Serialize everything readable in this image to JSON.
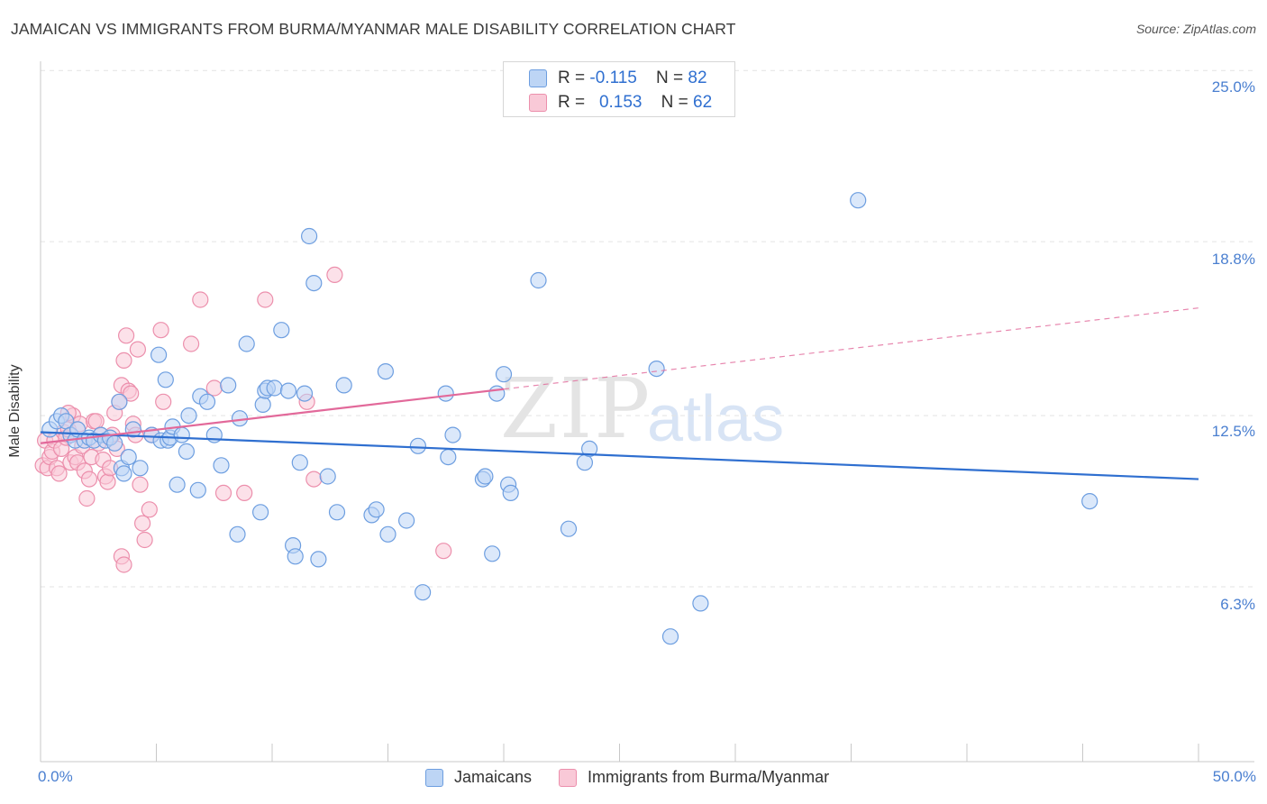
{
  "header": {
    "title": "JAMAICAN VS IMMIGRANTS FROM BURMA/MYANMAR MALE DISABILITY CORRELATION CHART",
    "source": "Source: ZipAtlas.com"
  },
  "watermark": {
    "zip": "ZIP",
    "atlas": "atlas"
  },
  "legend_top": {
    "rows": [
      {
        "r_label": "R =",
        "r_value": "-0.115",
        "n_label": "N =",
        "n_value": "82"
      },
      {
        "r_label": "R =",
        "r_value": "0.153",
        "n_label": "N =",
        "n_value": "62"
      }
    ]
  },
  "legend_bottom": {
    "items": [
      {
        "label": "Jamaicans"
      },
      {
        "label": "Immigrants from Burma/Myanmar"
      }
    ]
  },
  "colors": {
    "jamaicans_fill": "#bdd5f5",
    "jamaicans_stroke": "#6d9ee0",
    "jamaicans_line": "#2f6fd0",
    "burma_fill": "#f9c9d7",
    "burma_stroke": "#ec8fac",
    "burma_line": "#e2699a",
    "tick_text": "#4a7fd0",
    "grid": "#e3e3e3"
  },
  "chart_data": {
    "type": "scatter",
    "title": "JAMAICAN VS IMMIGRANTS FROM BURMA/MYANMAR MALE DISABILITY CORRELATION CHART",
    "xlabel": "",
    "ylabel": "Male Disability",
    "xlim": [
      0,
      50
    ],
    "ylim": [
      0,
      26
    ],
    "x_tick_labels": [
      "0.0%",
      "50.0%"
    ],
    "y_ticks": [
      6.3,
      12.5,
      18.8,
      25.0
    ],
    "y_tick_labels": [
      "6.3%",
      "12.5%",
      "18.8%",
      "25.0%"
    ],
    "grid": true,
    "legend_position": "top-center",
    "series": [
      {
        "name": "Jamaicans",
        "r": -0.115,
        "n": 82,
        "trend": {
          "x": [
            0,
            50
          ],
          "y": [
            11.9,
            10.2
          ]
        },
        "points": [
          [
            0.4,
            12.0
          ],
          [
            0.7,
            12.3
          ],
          [
            0.9,
            12.5
          ],
          [
            1.1,
            12.3
          ],
          [
            1.3,
            11.8
          ],
          [
            1.5,
            11.6
          ],
          [
            1.6,
            12.0
          ],
          [
            1.9,
            11.6
          ],
          [
            2.1,
            11.7
          ],
          [
            2.3,
            11.6
          ],
          [
            2.6,
            11.8
          ],
          [
            2.8,
            11.6
          ],
          [
            3.0,
            11.7
          ],
          [
            3.2,
            11.5
          ],
          [
            3.4,
            13.0
          ],
          [
            3.5,
            10.6
          ],
          [
            3.6,
            10.4
          ],
          [
            3.8,
            11.0
          ],
          [
            4.0,
            12.0
          ],
          [
            4.3,
            10.6
          ],
          [
            4.8,
            11.8
          ],
          [
            5.1,
            14.7
          ],
          [
            5.2,
            11.6
          ],
          [
            5.4,
            13.8
          ],
          [
            5.5,
            11.6
          ],
          [
            5.6,
            11.7
          ],
          [
            5.7,
            12.1
          ],
          [
            5.9,
            10.0
          ],
          [
            6.1,
            11.8
          ],
          [
            6.3,
            11.2
          ],
          [
            6.4,
            12.5
          ],
          [
            6.8,
            9.8
          ],
          [
            6.9,
            13.2
          ],
          [
            7.2,
            13.0
          ],
          [
            7.5,
            11.8
          ],
          [
            7.8,
            10.7
          ],
          [
            8.1,
            13.6
          ],
          [
            8.5,
            8.2
          ],
          [
            8.6,
            12.4
          ],
          [
            8.9,
            15.1
          ],
          [
            9.5,
            9.0
          ],
          [
            9.6,
            12.9
          ],
          [
            9.7,
            13.4
          ],
          [
            9.8,
            13.5
          ],
          [
            10.1,
            13.5
          ],
          [
            10.4,
            15.6
          ],
          [
            10.7,
            13.4
          ],
          [
            10.9,
            7.8
          ],
          [
            11.0,
            7.4
          ],
          [
            11.2,
            10.8
          ],
          [
            11.4,
            13.3
          ],
          [
            11.6,
            19.0
          ],
          [
            11.8,
            17.3
          ],
          [
            12.0,
            7.3
          ],
          [
            12.4,
            10.3
          ],
          [
            12.8,
            9.0
          ],
          [
            13.1,
            13.6
          ],
          [
            14.3,
            8.9
          ],
          [
            14.5,
            9.1
          ],
          [
            14.9,
            14.1
          ],
          [
            15.0,
            8.2
          ],
          [
            15.8,
            8.7
          ],
          [
            16.3,
            11.4
          ],
          [
            16.5,
            6.1
          ],
          [
            17.5,
            13.3
          ],
          [
            17.6,
            11.0
          ],
          [
            17.8,
            11.8
          ],
          [
            19.1,
            10.2
          ],
          [
            19.2,
            10.3
          ],
          [
            19.5,
            7.5
          ],
          [
            19.7,
            13.3
          ],
          [
            20.0,
            14.0
          ],
          [
            20.2,
            10.0
          ],
          [
            20.3,
            9.7
          ],
          [
            21.5,
            17.4
          ],
          [
            22.8,
            8.4
          ],
          [
            23.5,
            10.8
          ],
          [
            23.7,
            11.3
          ],
          [
            26.6,
            14.2
          ],
          [
            27.2,
            4.5
          ],
          [
            28.5,
            5.7
          ],
          [
            35.3,
            20.3
          ],
          [
            45.3,
            9.4
          ]
        ]
      },
      {
        "name": "Immigrants from Burma/Myanmar",
        "r": 0.153,
        "n": 62,
        "trend": {
          "x": [
            0,
            50
          ],
          "y": [
            11.5,
            16.4
          ]
        },
        "trend_solid_x": [
          0,
          20
        ],
        "points": [
          [
            0.1,
            10.7
          ],
          [
            0.2,
            11.6
          ],
          [
            0.3,
            10.6
          ],
          [
            0.4,
            11.0
          ],
          [
            0.5,
            11.2
          ],
          [
            0.6,
            11.6
          ],
          [
            0.7,
            10.6
          ],
          [
            0.8,
            10.4
          ],
          [
            0.9,
            11.3
          ],
          [
            1.0,
            11.9
          ],
          [
            1.1,
            11.7
          ],
          [
            1.2,
            12.0
          ],
          [
            1.3,
            10.8
          ],
          [
            1.4,
            12.5
          ],
          [
            1.5,
            11.0
          ],
          [
            1.6,
            10.8
          ],
          [
            1.7,
            12.2
          ],
          [
            1.8,
            11.4
          ],
          [
            1.9,
            10.5
          ],
          [
            2.0,
            9.5
          ],
          [
            2.1,
            10.2
          ],
          [
            2.2,
            11.0
          ],
          [
            2.3,
            12.3
          ],
          [
            2.4,
            12.3
          ],
          [
            2.5,
            11.5
          ],
          [
            2.6,
            11.8
          ],
          [
            2.7,
            10.9
          ],
          [
            2.8,
            10.3
          ],
          [
            2.9,
            10.1
          ],
          [
            3.0,
            10.6
          ],
          [
            3.1,
            11.8
          ],
          [
            3.2,
            12.6
          ],
          [
            3.3,
            11.3
          ],
          [
            3.4,
            13.0
          ],
          [
            3.5,
            13.6
          ],
          [
            3.6,
            14.5
          ],
          [
            3.7,
            15.4
          ],
          [
            3.8,
            13.4
          ],
          [
            3.9,
            13.3
          ],
          [
            4.0,
            12.2
          ],
          [
            4.1,
            11.8
          ],
          [
            4.2,
            14.9
          ],
          [
            4.3,
            10.0
          ],
          [
            4.4,
            8.6
          ],
          [
            4.5,
            8.0
          ],
          [
            4.7,
            9.1
          ],
          [
            4.8,
            11.8
          ],
          [
            5.2,
            15.6
          ],
          [
            5.3,
            13.0
          ],
          [
            6.5,
            15.1
          ],
          [
            6.9,
            16.7
          ],
          [
            7.5,
            13.5
          ],
          [
            7.9,
            9.7
          ],
          [
            8.8,
            9.7
          ],
          [
            9.7,
            16.7
          ],
          [
            11.5,
            13.0
          ],
          [
            11.8,
            10.2
          ],
          [
            12.7,
            17.6
          ],
          [
            3.5,
            7.4
          ],
          [
            3.6,
            7.1
          ],
          [
            17.4,
            7.6
          ],
          [
            1.2,
            12.6
          ]
        ]
      }
    ]
  }
}
